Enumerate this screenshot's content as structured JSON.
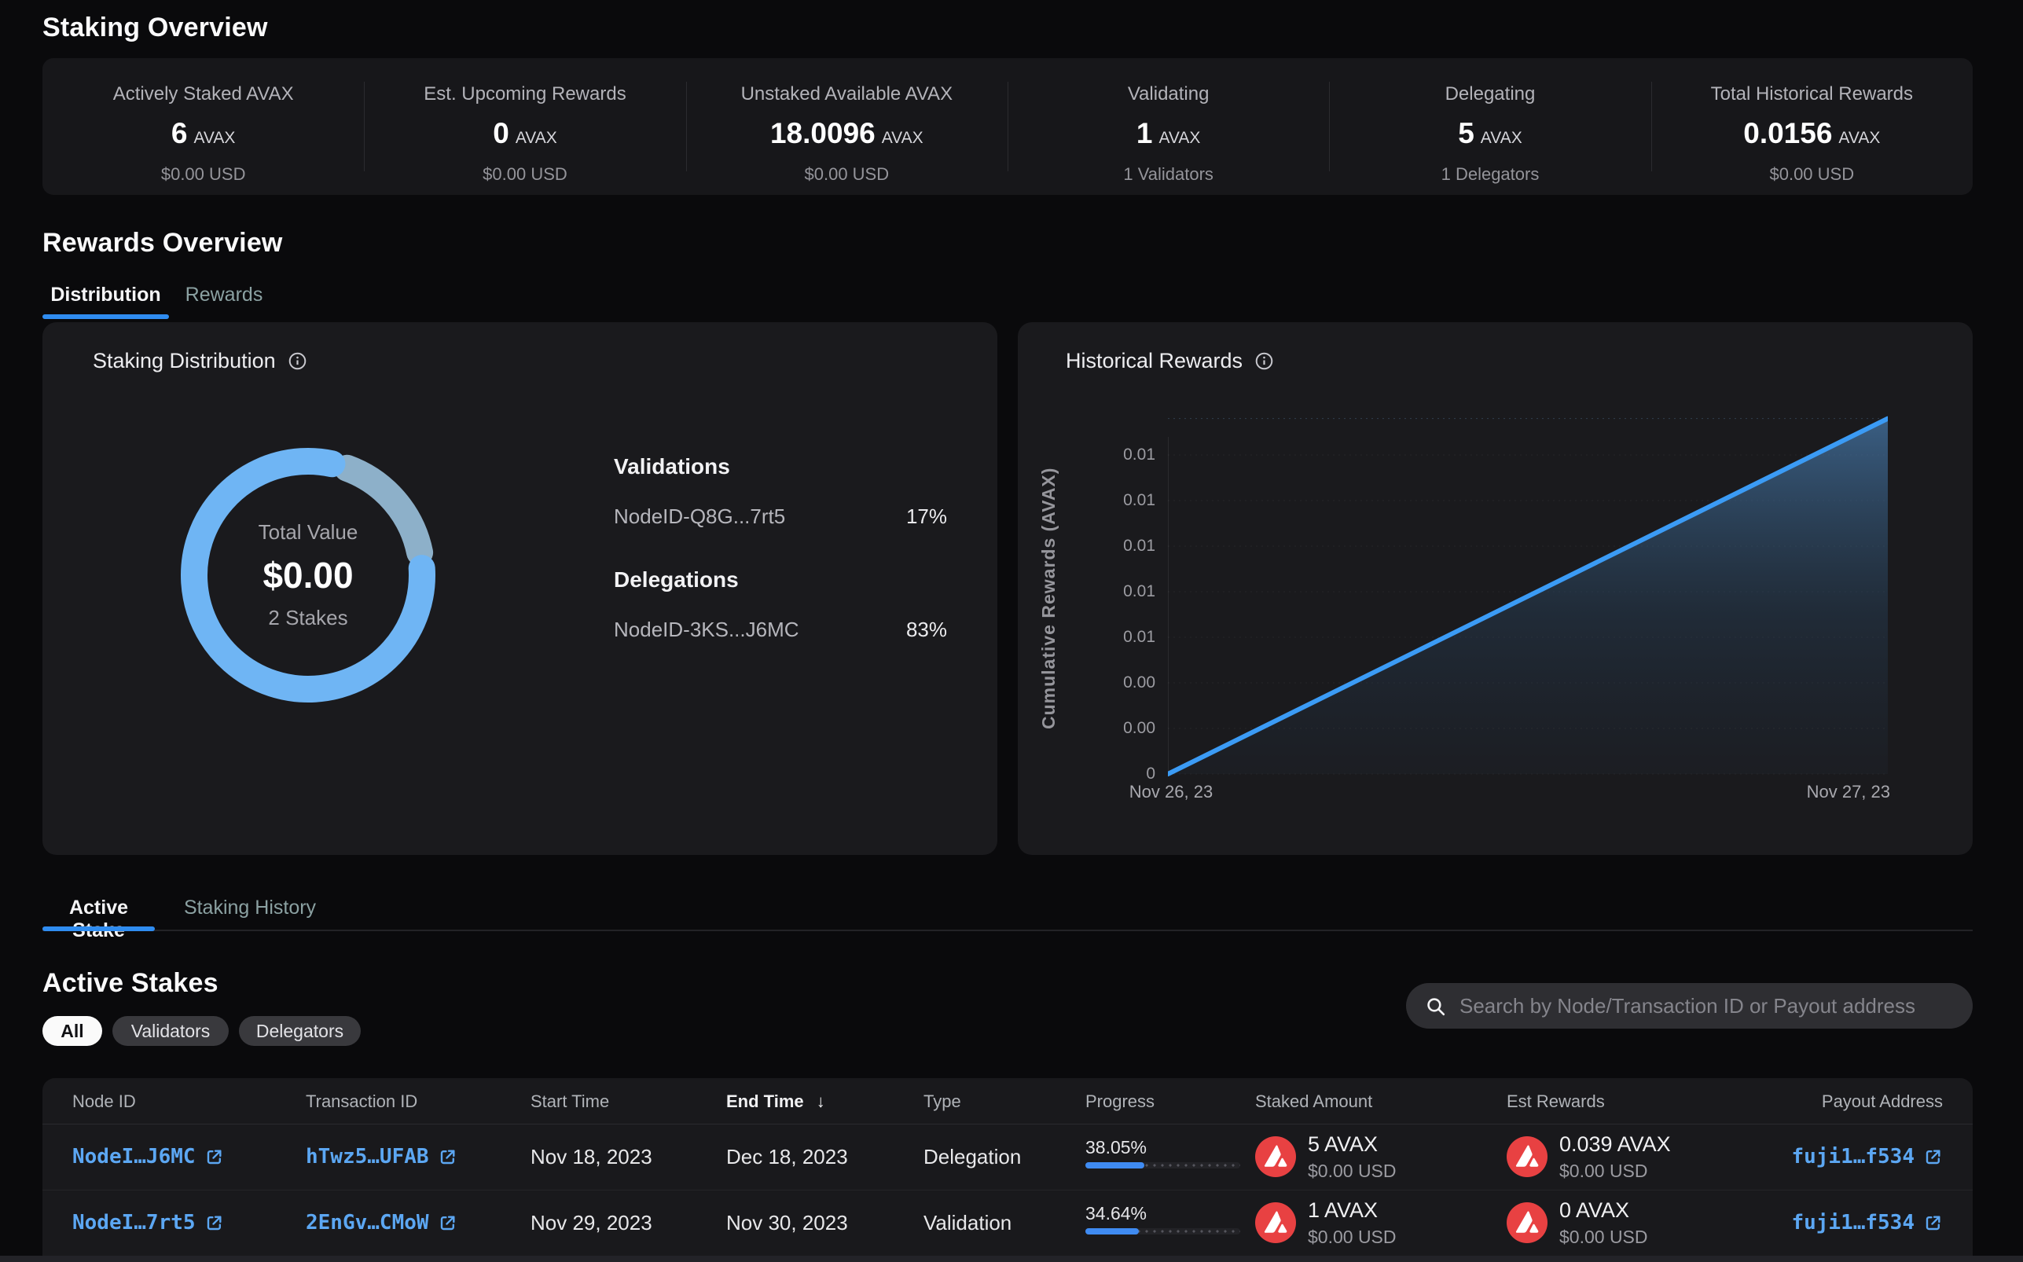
{
  "colors": {
    "page_bg": "#0a0a0c",
    "card_bg": "#1a1a1d",
    "accent_blue": "#2f8cf0",
    "link_blue": "#5ca7f3",
    "avax_red": "#e84142",
    "donut_primary": "#6fb5f4",
    "donut_secondary": "#8db0c9",
    "chart_line": "#3b9bf5",
    "pill_active_bg": "#fafafa"
  },
  "icons": {
    "info": "circled-i",
    "search": "magnifier",
    "external_link": "box-arrow-up-right",
    "sort_desc": "down-arrow",
    "avax": "avalanche-logo"
  },
  "staking_overview": {
    "title": "Staking Overview",
    "stats": [
      {
        "label": "Actively Staked AVAX",
        "value": "6",
        "unit": "AVAX",
        "sub": "$0.00 USD"
      },
      {
        "label": "Est. Upcoming Rewards",
        "value": "0",
        "unit": "AVAX",
        "sub": "$0.00 USD"
      },
      {
        "label": "Unstaked Available AVAX",
        "value": "18.0096",
        "unit": "AVAX",
        "sub": "$0.00 USD"
      },
      {
        "label": "Validating",
        "value": "1",
        "unit": "AVAX",
        "sub": "1 Validators"
      },
      {
        "label": "Delegating",
        "value": "5",
        "unit": "AVAX",
        "sub": "1 Delegators"
      },
      {
        "label": "Total Historical Rewards",
        "value": "0.0156",
        "unit": "AVAX",
        "sub": "$0.00 USD"
      }
    ]
  },
  "rewards_overview": {
    "title": "Rewards Overview",
    "tabs": [
      {
        "label": "Distribution"
      },
      {
        "label": "Rewards"
      }
    ],
    "distribution_card": {
      "title": "Staking Distribution",
      "center": {
        "label": "Total Value",
        "value": "$0.00",
        "sub": "2 Stakes"
      },
      "sections": [
        {
          "header": "Validations",
          "node": "NodeID-Q8G...7rt5",
          "pct": "17%"
        },
        {
          "header": "Delegations",
          "node": "NodeID-3KS...J6MC",
          "pct": "83%"
        }
      ]
    },
    "historical_card": {
      "title": "Historical Rewards"
    }
  },
  "chart_data": [
    {
      "type": "pie",
      "title": "Staking Distribution",
      "donut": true,
      "center_label": "Total Value",
      "center_value": "$0.00",
      "center_sub": "2 Stakes",
      "slices": [
        {
          "label": "NodeID-Q8G...7rt5",
          "group": "Validations",
          "value": 17,
          "color": "#8db0c9"
        },
        {
          "label": "NodeID-3KS...J6MC",
          "group": "Delegations",
          "value": 83,
          "color": "#6fb5f4"
        }
      ]
    },
    {
      "type": "area",
      "title": "Historical Rewards",
      "ylabel": "Cumulative Rewards (AVAX)",
      "x_labels": [
        "Nov 26, 23",
        "Nov 27, 23"
      ],
      "points": [
        {
          "x": "Nov 26, 23",
          "y": 0
        },
        {
          "x": "Nov 27, 23",
          "y": 0.0156
        }
      ],
      "yticks": [
        {
          "v": 0,
          "label": "0"
        },
        {
          "v": 0.002,
          "label": "0.00"
        },
        {
          "v": 0.004,
          "label": "0.00"
        },
        {
          "v": 0.006,
          "label": "0.01"
        },
        {
          "v": 0.008,
          "label": "0.01"
        },
        {
          "v": 0.01,
          "label": "0.01"
        },
        {
          "v": 0.012,
          "label": "0.01"
        },
        {
          "v": 0.014,
          "label": "0.01"
        }
      ],
      "ylim": [
        0,
        0.0158
      ],
      "line_color": "#3b9bf5",
      "grid": true,
      "legend": "none"
    }
  ],
  "stakes_tabs": [
    {
      "label": "Active Stake"
    },
    {
      "label": "Staking History"
    }
  ],
  "active_stakes": {
    "title": "Active Stakes",
    "filters": [
      {
        "label": "All"
      },
      {
        "label": "Validators"
      },
      {
        "label": "Delegators"
      }
    ],
    "search_placeholder": "Search by Node/Transaction ID or Payout address",
    "table": {
      "columns": [
        "Node ID",
        "Transaction ID",
        "Start Time",
        "End Time",
        "Type",
        "Progress",
        "Staked Amount",
        "Est Rewards",
        "Payout Address"
      ],
      "sort_column": "End Time",
      "sort_indicator": "↓",
      "rows": [
        {
          "node_id": "NodeI…J6MC",
          "tx_id": "hTwz5…UFAB",
          "start": "Nov 18, 2023",
          "end": "Dec 18, 2023",
          "type": "Delegation",
          "progress_pct": "38.05%",
          "progress": 38.05,
          "staked": "5 AVAX",
          "staked_usd": "$0.00 USD",
          "est": "0.039 AVAX",
          "est_usd": "$0.00 USD",
          "payout": "fuji1…f534"
        },
        {
          "node_id": "NodeI…7rt5",
          "tx_id": "2EnGv…CMoW",
          "start": "Nov 29, 2023",
          "end": "Nov 30, 2023",
          "type": "Validation",
          "progress_pct": "34.64%",
          "progress": 34.64,
          "staked": "1 AVAX",
          "staked_usd": "$0.00 USD",
          "est": "0 AVAX",
          "est_usd": "$0.00 USD",
          "payout": "fuji1…f534"
        }
      ]
    }
  }
}
